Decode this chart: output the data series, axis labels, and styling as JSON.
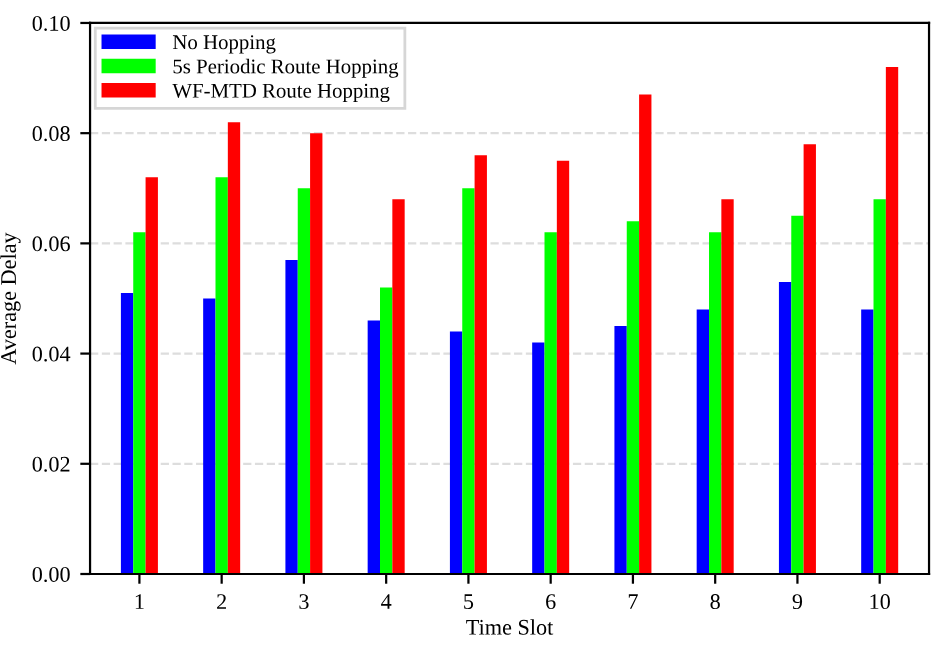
{
  "chart_data": {
    "type": "bar",
    "xlabel": "Time Slot",
    "ylabel": "Average Delay",
    "categories": [
      "1",
      "2",
      "3",
      "4",
      "5",
      "6",
      "7",
      "8",
      "9",
      "10"
    ],
    "series": [
      {
        "name": "No Hopping",
        "color": "#0000ff",
        "values": [
          0.051,
          0.05,
          0.057,
          0.046,
          0.044,
          0.042,
          0.045,
          0.048,
          0.053,
          0.048
        ]
      },
      {
        "name": "5s Periodic Route Hopping",
        "color": "#00ff00",
        "values": [
          0.062,
          0.072,
          0.07,
          0.052,
          0.07,
          0.062,
          0.064,
          0.062,
          0.065,
          0.068
        ]
      },
      {
        "name": "WF-MTD Route Hopping",
        "color": "#ff0000",
        "values": [
          0.072,
          0.082,
          0.08,
          0.068,
          0.076,
          0.075,
          0.087,
          0.068,
          0.078,
          0.092
        ]
      }
    ],
    "ylim": [
      0,
      0.1
    ],
    "yticks": [
      {
        "value": 0,
        "label": "0.00"
      },
      {
        "value": 0.02,
        "label": "0.02"
      },
      {
        "value": 0.04,
        "label": "0.04"
      },
      {
        "value": 0.06,
        "label": "0.06"
      },
      {
        "value": 0.08,
        "label": "0.08"
      },
      {
        "value": 0.1,
        "label": "0.10"
      }
    ],
    "grid": "y",
    "legend": "top left"
  }
}
